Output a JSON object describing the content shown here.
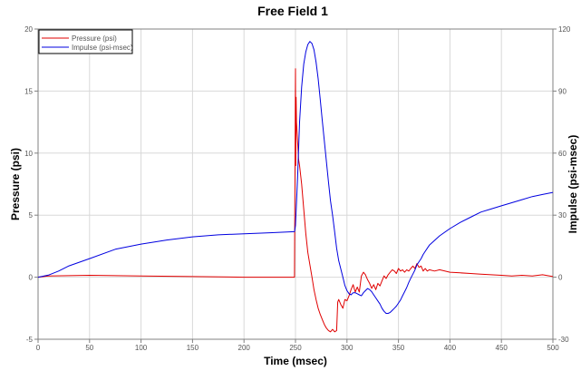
{
  "chart_data": {
    "type": "line",
    "title": "Free Field 1",
    "xlabel": "Time (msec)",
    "ylabel_left": "Pressure (psi)",
    "ylabel_right": "Impulse (psi-msec)",
    "xlim": [
      0,
      500
    ],
    "ylim_left": [
      -5,
      20
    ],
    "ylim_right": [
      -30,
      120
    ],
    "x_ticks": [
      0,
      50,
      100,
      150,
      200,
      250,
      300,
      350,
      400,
      450,
      500
    ],
    "y_ticks_left": [
      -5,
      0,
      5,
      10,
      15,
      20
    ],
    "y_ticks_right": [
      -30,
      0,
      30,
      60,
      90,
      120
    ],
    "grid": true,
    "legend_position": "top-left",
    "series": [
      {
        "name": "Pressure (psi)",
        "axis": "left",
        "color": "#e00000",
        "x": [
          0,
          10,
          50,
          100,
          150,
          200,
          249,
          249.5,
          250,
          250.3,
          250.6,
          251,
          252,
          253,
          254,
          256,
          258,
          260,
          262,
          264,
          266,
          268,
          270,
          272,
          274,
          276,
          278,
          280,
          282,
          284,
          286,
          288,
          290,
          291,
          292,
          294,
          296,
          298,
          300,
          302,
          304,
          306,
          308,
          310,
          312,
          314,
          316,
          318,
          320,
          322,
          324,
          326,
          328,
          330,
          332,
          334,
          336,
          338,
          340,
          342,
          344,
          346,
          348,
          350,
          352,
          354,
          356,
          358,
          360,
          362,
          364,
          366,
          368,
          370,
          372,
          374,
          376,
          378,
          380,
          385,
          390,
          400,
          410,
          420,
          430,
          440,
          450,
          460,
          470,
          480,
          490,
          500
        ],
        "y": [
          0.0,
          0.1,
          0.15,
          0.1,
          0.05,
          0.0,
          0.0,
          8.0,
          16.8,
          9.0,
          14.5,
          12.5,
          11.0,
          9.5,
          9.0,
          7.5,
          5.5,
          3.5,
          2.0,
          1.0,
          0.0,
          -1.0,
          -1.8,
          -2.5,
          -3.0,
          -3.4,
          -3.8,
          -4.1,
          -4.3,
          -4.4,
          -4.2,
          -4.4,
          -4.3,
          -2.0,
          -1.8,
          -2.2,
          -2.5,
          -1.8,
          -1.9,
          -1.5,
          -1.0,
          -0.6,
          -1.2,
          -0.8,
          -1.2,
          0.1,
          0.4,
          0.2,
          -0.2,
          -0.5,
          -0.9,
          -0.6,
          -1.0,
          -0.5,
          -0.7,
          -0.3,
          0.1,
          -0.1,
          0.2,
          0.4,
          0.6,
          0.5,
          0.3,
          0.7,
          0.5,
          0.6,
          0.4,
          0.6,
          0.5,
          0.7,
          0.9,
          0.7,
          1.1,
          0.8,
          0.9,
          0.5,
          0.7,
          0.5,
          0.6,
          0.5,
          0.6,
          0.4,
          0.35,
          0.3,
          0.25,
          0.2,
          0.15,
          0.1,
          0.15,
          0.1,
          0.2,
          0.05
        ]
      },
      {
        "name": "Impulse (psi-msec)",
        "axis": "right",
        "color": "#0000e0",
        "x": [
          0,
          10,
          20,
          30,
          50,
          75,
          100,
          125,
          150,
          175,
          200,
          225,
          249,
          250,
          252,
          254,
          256,
          258,
          260,
          262,
          264,
          266,
          268,
          270,
          272,
          274,
          276,
          278,
          280,
          282,
          284,
          286,
          288,
          290,
          292,
          294,
          296,
          298,
          300,
          302,
          304,
          306,
          308,
          310,
          312,
          314,
          316,
          318,
          320,
          322,
          324,
          326,
          328,
          330,
          332,
          334,
          336,
          338,
          340,
          342,
          344,
          346,
          348,
          350,
          352,
          354,
          356,
          358,
          360,
          362,
          364,
          366,
          368,
          370,
          372,
          374,
          376,
          378,
          380,
          390,
          400,
          410,
          420,
          430,
          440,
          450,
          460,
          470,
          480,
          490,
          500
        ],
        "y": [
          0,
          1,
          3,
          5.5,
          9,
          13.5,
          16,
          18,
          19.5,
          20.5,
          21,
          21.5,
          22,
          25,
          48,
          75,
          92,
          103,
          109,
          112.5,
          114,
          113,
          110,
          104,
          96,
          86,
          76,
          66,
          56,
          46,
          37,
          30,
          22,
          14,
          8,
          4,
          0,
          -4,
          -6.5,
          -8,
          -8.5,
          -7.5,
          -7.5,
          -8,
          -8.5,
          -9,
          -7.5,
          -6.5,
          -5.5,
          -6,
          -7,
          -8.5,
          -10,
          -11.5,
          -13,
          -15,
          -16.5,
          -17.5,
          -17.5,
          -17,
          -16,
          -15,
          -14,
          -12.5,
          -11,
          -9,
          -7,
          -5,
          -2.5,
          -0.5,
          1.5,
          3.5,
          6,
          7.5,
          9,
          11,
          12.5,
          14,
          15.5,
          20,
          23.5,
          26.5,
          29,
          31.5,
          33,
          34.5,
          36,
          37.5,
          39,
          40,
          41
        ]
      }
    ]
  }
}
